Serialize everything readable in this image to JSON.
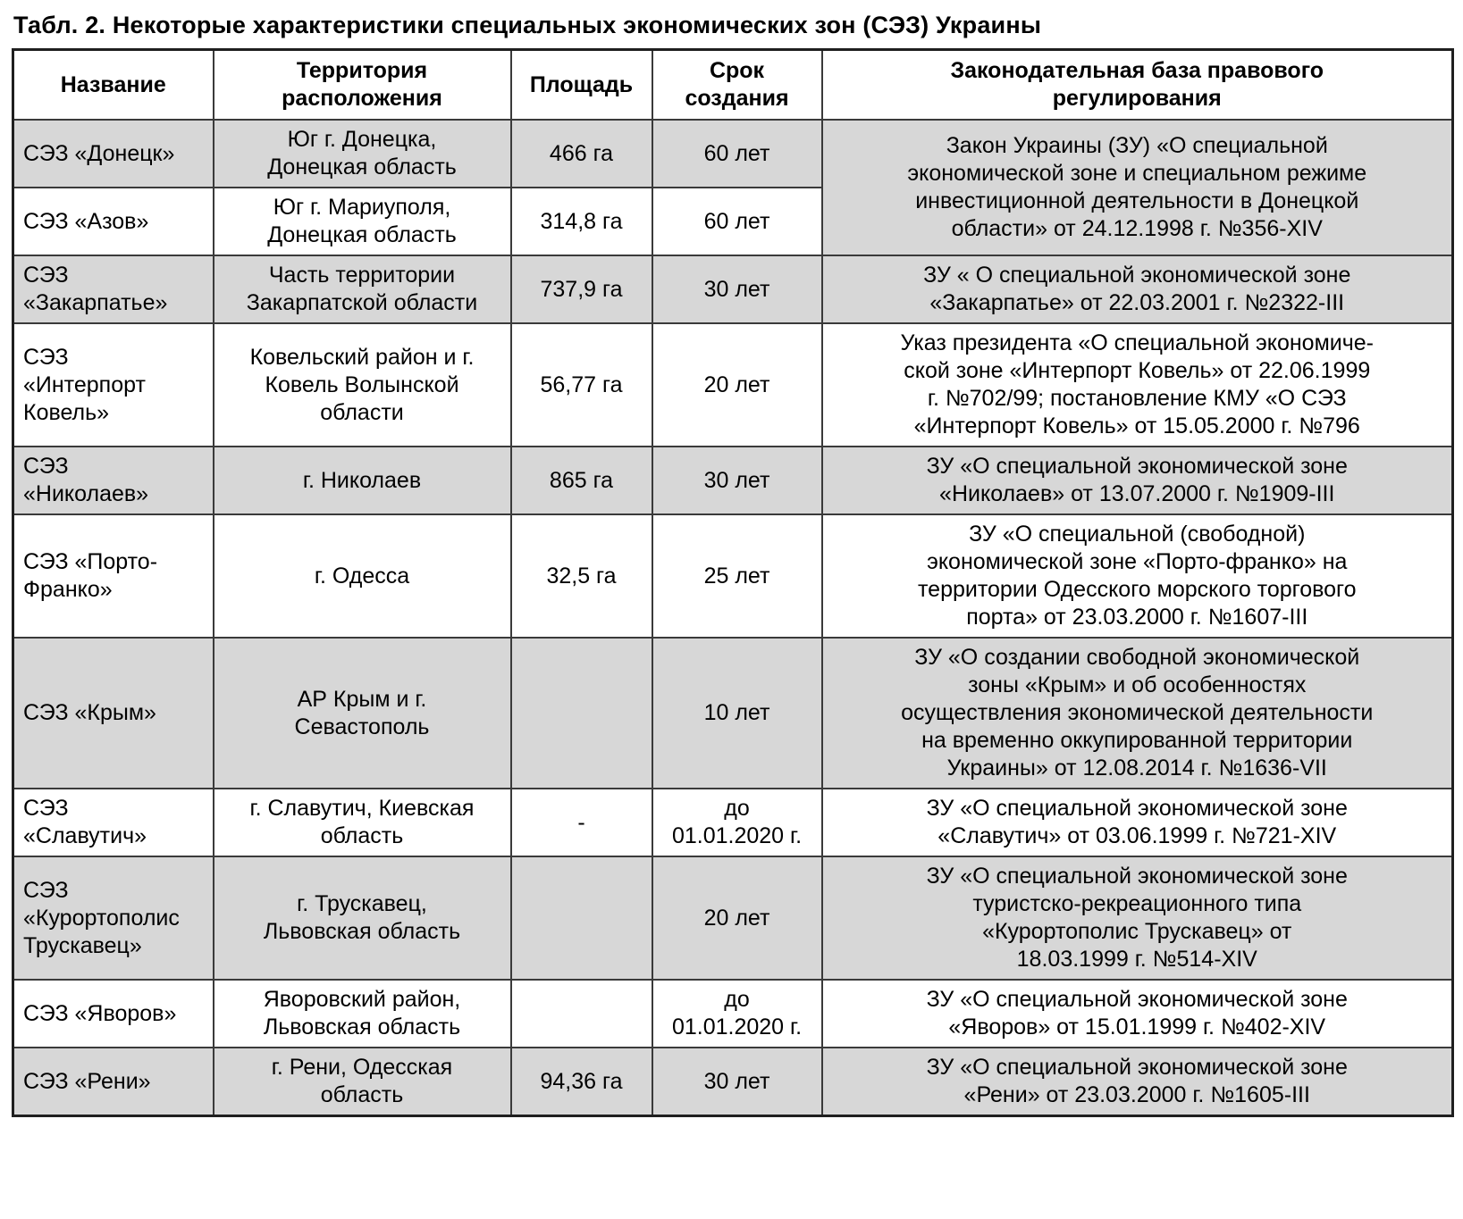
{
  "page": {
    "title": "Табл. 2. Некоторые характеристики специальных экономических зон (СЭЗ) Украины"
  },
  "colors": {
    "shaded_row": "#d7d7d7",
    "plain_row": "#ffffff",
    "border": "#3a3a3a",
    "text": "#000000"
  },
  "table": {
    "columns": [
      {
        "key": "name",
        "label": "Название"
      },
      {
        "key": "territory",
        "label": "Территория\nрасположения"
      },
      {
        "key": "area",
        "label": "Площадь"
      },
      {
        "key": "term",
        "label": "Срок\nсоздания"
      },
      {
        "key": "legal",
        "label": "Законодательная база правового\nрегулирования"
      }
    ],
    "rows": [
      {
        "name": "СЭЗ «Донецк»",
        "territory": "Юг г. Донецка,\nДонецкая область",
        "area": "466 га",
        "term": "60 лет",
        "legal": "Закон Украины (ЗУ) «О специальной\nэкономической зоне и специальном режиме\nинвестиционной деятельности в Донецкой\nобласти» от 24.12.1998 г. №356-XIV",
        "legal_rowspan": 2,
        "shaded": true
      },
      {
        "name": "СЭЗ «Азов»",
        "territory": "Юг г. Мариуполя,\nДонецкая область",
        "area": "314,8 га",
        "term": "60 лет",
        "shaded": false
      },
      {
        "name": "СЭЗ\n«Закарпатье»",
        "territory": "Часть территории\nЗакарпатской области",
        "area": "737,9 га",
        "term": "30 лет",
        "legal": "ЗУ « О специальной экономической зоне\n«Закарпатье» от 22.03.2001 г. №2322-III",
        "shaded": true
      },
      {
        "name": "СЭЗ\n«Интерпорт\nКовель»",
        "territory": "Ковельский район и г.\nКовель Волынской\nобласти",
        "area": "56,77 га",
        "term": "20 лет",
        "legal": "Указ президента «О специальной экономиче-\nской зоне «Интерпорт Ковель» от 22.06.1999\nг. №702/99; постановление КМУ «О СЭЗ\n«Интерпорт Ковель» от 15.05.2000 г. №796",
        "shaded": false
      },
      {
        "name": "СЭЗ\n«Николаев»",
        "territory": "г. Николаев",
        "area": "865 га",
        "term": "30 лет",
        "legal": "ЗУ «О специальной экономической зоне\n«Николаев» от 13.07.2000 г. №1909-III",
        "shaded": true
      },
      {
        "name": "СЭЗ «Порто-\nФранко»",
        "territory": "г. Одесса",
        "area": "32,5 га",
        "term": "25 лет",
        "legal": "ЗУ «О специальной (свободной)\nэкономической зоне «Порто-франко» на\nтерритории Одесского морского торгового\nпорта» от 23.03.2000 г. №1607-III",
        "shaded": false
      },
      {
        "name": "СЭЗ «Крым»",
        "territory": "АР Крым и г.\nСевастополь",
        "area": "",
        "term": "10 лет",
        "legal": "ЗУ «О создании свободной экономической\nзоны «Крым» и об особенностях\nосуществления экономической деятельности\nна временно оккупированной территории\nУкраины» от 12.08.2014 г. №1636-VII",
        "shaded": true
      },
      {
        "name": "СЭЗ\n«Славутич»",
        "territory": "г. Славутич, Киевская\nобласть",
        "area": "-",
        "term": "до\n01.01.2020 г.",
        "legal": "ЗУ «О специальной экономической зоне\n«Славутич» от 03.06.1999 г. №721-XIV",
        "shaded": false
      },
      {
        "name": "СЭЗ\n«Курортополис\nТрускавец»",
        "territory": "г. Трускавец,\nЛьвовская область",
        "area": "",
        "term": "20 лет",
        "legal": "ЗУ «О специальной экономической зоне\nтуристско-рекреационного типа\n«Курортополис Трускавец» от\n18.03.1999 г. №514-XIV",
        "shaded": true
      },
      {
        "name": "СЭЗ «Яворов»",
        "territory": "Яворовский район,\nЛьвовская область",
        "area": "",
        "term": "до\n01.01.2020 г.",
        "legal": "ЗУ «О специальной экономической зоне\n«Яворов» от 15.01.1999 г. №402-XIV",
        "shaded": false
      },
      {
        "name": "СЭЗ «Рени»",
        "territory": "г. Рени, Одесская\nобласть",
        "area": "94,36 га",
        "term": "30 лет",
        "legal": "ЗУ «О специальной экономической зоне\n«Рени» от 23.03.2000 г. №1605-III",
        "shaded": true
      }
    ]
  }
}
